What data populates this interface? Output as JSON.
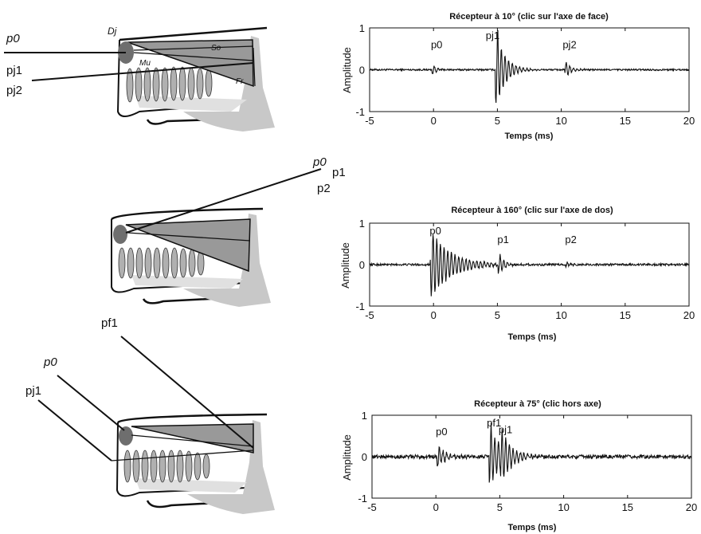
{
  "diagrams": [
    {
      "ray_labels": [
        "p0",
        "pj1",
        "pj2"
      ],
      "anatomy_labels": [
        "Dj",
        "Mu",
        "So",
        "Fr"
      ]
    },
    {
      "ray_labels": [
        "p0",
        "p1",
        "p2"
      ],
      "anatomy_labels": []
    },
    {
      "ray_labels": [
        "pf1",
        "p0",
        "pj1"
      ],
      "anatomy_labels": []
    }
  ],
  "chart_data": [
    {
      "type": "line",
      "title": "Récepteur à 10° (clic sur l'axe de face)",
      "xlabel": "Temps (ms)",
      "ylabel": "Amplitude",
      "xlim": [
        -5,
        20
      ],
      "ylim": [
        -1,
        1
      ],
      "xticks": [
        -5,
        0,
        5,
        10,
        15,
        20
      ],
      "yticks": [
        -1,
        0,
        1
      ],
      "pulses": [
        {
          "label": "p0",
          "time": 0,
          "amplitude": 0.12
        },
        {
          "label": "pj1",
          "time": 5,
          "amplitude": 1.0
        },
        {
          "label": "pj2",
          "time": 10.4,
          "amplitude": 0.18
        }
      ]
    },
    {
      "type": "line",
      "title": "Récepteur à 160° (clic sur l'axe de dos)",
      "xlabel": "Temps (ms)",
      "ylabel": "Amplitude",
      "xlim": [
        -5,
        20
      ],
      "ylim": [
        -1,
        1
      ],
      "xticks": [
        -5,
        0,
        5,
        10,
        15,
        20
      ],
      "yticks": [
        -1,
        0,
        1
      ],
      "pulses": [
        {
          "label": "p0",
          "time": -0.1,
          "amplitude": 0.95
        },
        {
          "label": "p1",
          "time": 5.2,
          "amplitude": 0.28
        },
        {
          "label": "p2",
          "time": 10.5,
          "amplitude": 0.05
        }
      ]
    },
    {
      "type": "line",
      "title": "Récepteur à 75° (clic hors axe)",
      "xlabel": "Temps (ms)",
      "ylabel": "Amplitude",
      "xlim": [
        -5,
        20
      ],
      "ylim": [
        -1,
        1
      ],
      "xticks": [
        -5,
        0,
        5,
        10,
        15,
        20
      ],
      "yticks": [
        -1,
        0,
        1
      ],
      "pulses": [
        {
          "label": "p0",
          "time": 0.2,
          "amplitude": 0.3
        },
        {
          "label": "pf1",
          "time": 4.3,
          "amplitude": 0.8
        },
        {
          "label": "pj1",
          "time": 5.2,
          "amplitude": 0.45
        }
      ]
    }
  ]
}
